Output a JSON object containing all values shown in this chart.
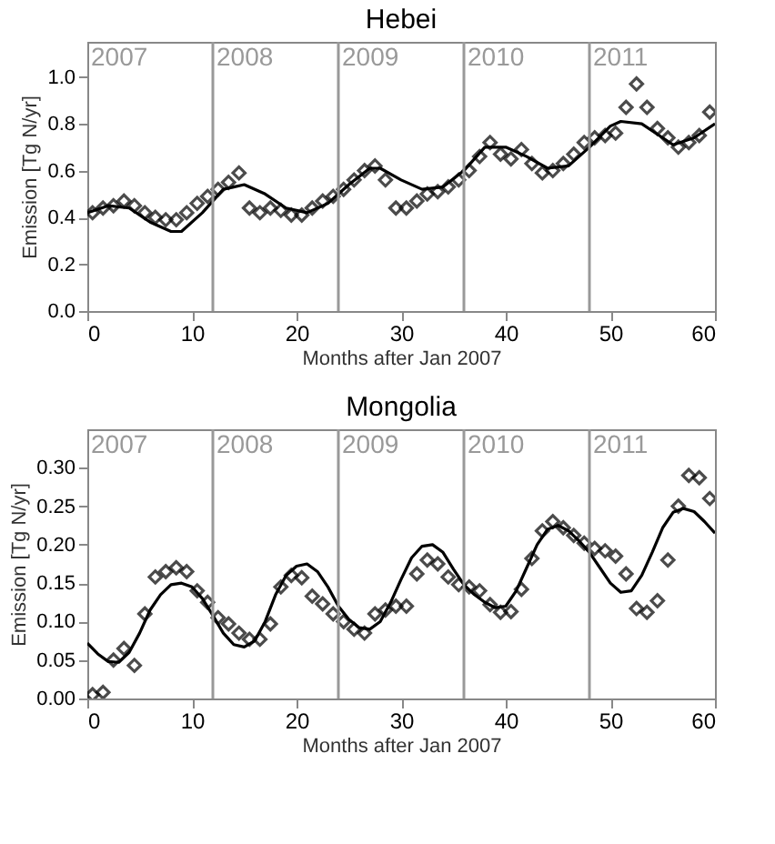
{
  "chart_data": [
    {
      "type": "scatter",
      "title": "Hebei",
      "xlabel": "Months after Jan 2007",
      "ylabel": "Emission [Tg N/yr]",
      "xlim": [
        0,
        60
      ],
      "xticks": [
        0,
        10,
        20,
        30,
        40,
        50,
        60
      ],
      "ylim": [
        0,
        1.15
      ],
      "yticks": [
        {
          "value": 0,
          "label": "0.0"
        },
        0.2,
        0.4,
        0.6,
        0.8,
        {
          "value": 1,
          "label": "1.0"
        }
      ],
      "grid": false,
      "legend": false,
      "ref_lines": [
        {
          "axis": "x",
          "value": 12,
          "color": "#999999"
        },
        {
          "axis": "x",
          "value": 24,
          "color": "#999999"
        },
        {
          "axis": "x",
          "value": 36,
          "color": "#999999"
        },
        {
          "axis": "x",
          "value": 48,
          "color": "#999999"
        }
      ],
      "annotations": [
        "2007",
        "2008",
        "2009",
        "2010",
        "2011"
      ],
      "series": [
        {
          "type": "scatter",
          "marker": "diamond",
          "color": "#000000",
          "x": [
            0.5,
            1.5,
            2.5,
            3.5,
            4.5,
            5.5,
            6.5,
            7.5,
            8.5,
            9.5,
            10.5,
            11.5,
            12.5,
            13.5,
            14.5,
            15.5,
            16.5,
            17.5,
            18.5,
            19.5,
            20.5,
            21.5,
            22.5,
            23.5,
            24.5,
            25.5,
            26.5,
            27.5,
            28.5,
            29.5,
            30.5,
            31.5,
            32.5,
            33.5,
            34.5,
            35.5,
            36.5,
            37.5,
            38.5,
            39.5,
            40.5,
            41.5,
            42.5,
            43.5,
            44.5,
            45.5,
            46.5,
            47.5,
            48.5,
            49.5,
            50.5,
            51.5,
            52.5,
            53.5,
            54.5,
            55.5,
            56.5,
            57.5,
            58.5,
            59.5
          ],
          "values": [
            0.42,
            0.44,
            0.45,
            0.47,
            0.45,
            0.42,
            0.4,
            0.39,
            0.39,
            0.42,
            0.46,
            0.49,
            0.52,
            0.55,
            0.59,
            0.44,
            0.42,
            0.44,
            0.43,
            0.41,
            0.41,
            0.44,
            0.47,
            0.49,
            0.52,
            0.56,
            0.6,
            0.62,
            0.56,
            0.44,
            0.44,
            0.47,
            0.5,
            0.51,
            0.53,
            0.56,
            0.6,
            0.66,
            0.72,
            0.67,
            0.65,
            0.69,
            0.63,
            0.59,
            0.6,
            0.63,
            0.67,
            0.72,
            0.74,
            0.75,
            0.76,
            0.87,
            0.97,
            0.87,
            0.78,
            0.74,
            0.7,
            0.72,
            0.75,
            0.85
          ]
        },
        {
          "type": "line",
          "marker": "none",
          "color": "#000000",
          "x": [
            0,
            2,
            4,
            6,
            8,
            9,
            11,
            13,
            15,
            17,
            19,
            21,
            23,
            25,
            27,
            28,
            30,
            32,
            34,
            36,
            38,
            40,
            42,
            44,
            46,
            48,
            50,
            51,
            53,
            55,
            56,
            58,
            60
          ],
          "values": [
            0.42,
            0.45,
            0.44,
            0.38,
            0.34,
            0.34,
            0.42,
            0.52,
            0.54,
            0.5,
            0.44,
            0.42,
            0.46,
            0.54,
            0.61,
            0.61,
            0.56,
            0.52,
            0.53,
            0.6,
            0.7,
            0.7,
            0.66,
            0.61,
            0.62,
            0.7,
            0.79,
            0.81,
            0.8,
            0.74,
            0.71,
            0.74,
            0.8
          ]
        }
      ]
    },
    {
      "type": "scatter",
      "title": "Mongolia",
      "xlabel": "Months after Jan 2007",
      "ylabel": "Emission [Tg N/yr]",
      "xlim": [
        0,
        60
      ],
      "xticks": [
        0,
        10,
        20,
        30,
        40,
        50,
        60
      ],
      "ylim": [
        0,
        0.35
      ],
      "yticks": [
        {
          "value": 0,
          "label": "0.00"
        },
        0.05,
        {
          "value": 0.1,
          "label": "0.10"
        },
        0.15,
        {
          "value": 0.2,
          "label": "0.20"
        },
        0.25,
        {
          "value": 0.3,
          "label": "0.30"
        }
      ],
      "grid": false,
      "legend": false,
      "ref_lines": [
        {
          "axis": "x",
          "value": 12,
          "color": "#999999"
        },
        {
          "axis": "x",
          "value": 24,
          "color": "#999999"
        },
        {
          "axis": "x",
          "value": 36,
          "color": "#999999"
        },
        {
          "axis": "x",
          "value": 48,
          "color": "#999999"
        }
      ],
      "annotations": [
        "2007",
        "2008",
        "2009",
        "2010",
        "2011"
      ],
      "series": [
        {
          "type": "scatter",
          "marker": "diamond",
          "color": "#000000",
          "x": [
            0.5,
            1.5,
            2.5,
            3.5,
            4.5,
            5.5,
            6.5,
            7.5,
            8.5,
            9.5,
            10.5,
            11.5,
            12.5,
            13.5,
            14.5,
            15.5,
            16.5,
            17.5,
            18.5,
            19.5,
            20.5,
            21.5,
            22.5,
            23.5,
            24.5,
            25.5,
            26.5,
            27.5,
            28.5,
            29.5,
            30.5,
            31.5,
            32.5,
            33.5,
            34.5,
            35.5,
            36.5,
            37.5,
            38.5,
            39.5,
            40.5,
            41.5,
            42.5,
            43.5,
            44.5,
            45.5,
            46.5,
            47.5,
            48.5,
            49.5,
            50.5,
            51.5,
            52.5,
            53.5,
            54.5,
            55.5,
            56.5,
            57.5,
            58.5,
            59.5
          ],
          "values": [
            0.005,
            0.008,
            0.05,
            0.065,
            0.043,
            0.11,
            0.158,
            0.165,
            0.17,
            0.165,
            0.14,
            0.125,
            0.105,
            0.097,
            0.085,
            0.077,
            0.077,
            0.097,
            0.145,
            0.16,
            0.157,
            0.133,
            0.123,
            0.11,
            0.1,
            0.09,
            0.085,
            0.11,
            0.115,
            0.12,
            0.12,
            0.162,
            0.18,
            0.175,
            0.158,
            0.148,
            0.145,
            0.14,
            0.122,
            0.112,
            0.113,
            0.142,
            0.182,
            0.218,
            0.23,
            0.222,
            0.212,
            0.202,
            0.195,
            0.192,
            0.185,
            0.162,
            0.117,
            0.112,
            0.127,
            0.18,
            0.25,
            0.29,
            0.287,
            0.26
          ]
        },
        {
          "type": "line",
          "marker": "none",
          "color": "#000000",
          "x": [
            0,
            1,
            2,
            3,
            4,
            5,
            6,
            7,
            8,
            9,
            10,
            11,
            12,
            13,
            14,
            15,
            16,
            17,
            18,
            19,
            20,
            21,
            22,
            23,
            24,
            25,
            26,
            27,
            28,
            29,
            30,
            31,
            32,
            33,
            34,
            35,
            36,
            37,
            38,
            39,
            40,
            41,
            42,
            43,
            44,
            45,
            46,
            47,
            48,
            49,
            50,
            51,
            52,
            53,
            54,
            55,
            56,
            57,
            58,
            59,
            60
          ],
          "values": [
            0.072,
            0.058,
            0.048,
            0.047,
            0.06,
            0.085,
            0.115,
            0.135,
            0.148,
            0.15,
            0.145,
            0.13,
            0.108,
            0.085,
            0.07,
            0.067,
            0.075,
            0.1,
            0.135,
            0.16,
            0.172,
            0.175,
            0.165,
            0.145,
            0.12,
            0.103,
            0.092,
            0.09,
            0.1,
            0.125,
            0.155,
            0.183,
            0.198,
            0.2,
            0.19,
            0.168,
            0.148,
            0.135,
            0.125,
            0.118,
            0.12,
            0.14,
            0.17,
            0.2,
            0.22,
            0.225,
            0.218,
            0.205,
            0.19,
            0.17,
            0.15,
            0.138,
            0.14,
            0.16,
            0.19,
            0.222,
            0.242,
            0.247,
            0.243,
            0.23,
            0.215
          ]
        }
      ]
    }
  ]
}
